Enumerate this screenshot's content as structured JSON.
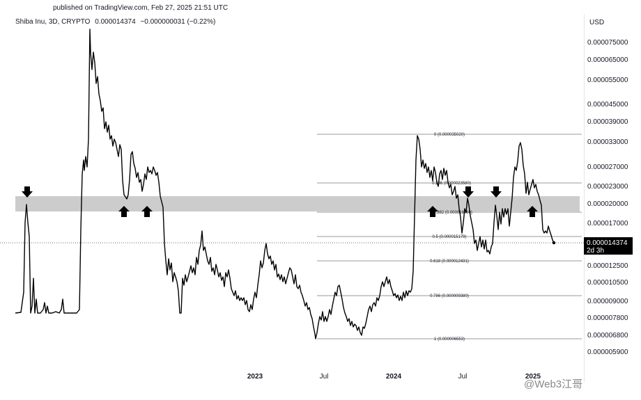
{
  "header": {
    "published": "published on TradingView.com, Feb 27, 2025 21:51 UTC",
    "symbol": "Shiba Inu, 3D, CRYPTO",
    "price": "0.000014374",
    "change": "−0.000000031 (−0.22%)"
  },
  "axis": {
    "currency": "USD"
  },
  "price_badge": {
    "value": "0.000014374",
    "countdown": "2d 3h"
  },
  "watermark": "@Web3江哥",
  "colors": {
    "line": "#000000",
    "zone": "#cccccc",
    "badge": "#000000",
    "grid": "#b2b2b2"
  },
  "chart_data": {
    "type": "line",
    "series": [
      {
        "name": "",
        "values": []
      }
    ],
    "y_ticks": [
      "0.000075000",
      "0.000065000",
      "0.000055000",
      "0.000045000",
      "0.000039000",
      "0.000033000",
      "0.000027000",
      "0.000023000",
      "0.000020000",
      "0.000017000",
      "0.000012500",
      "0.000010500",
      "0.000009000",
      "0.000007800",
      "0.000006800",
      "0.000005900"
    ],
    "x_ticks": [
      "2023",
      "Jul",
      "2024",
      "Jul",
      "2025"
    ],
    "support_zone": {
      "low": 1.87e-05,
      "high": 2.08e-05
    },
    "fibonacci": [
      {
        "level": "0",
        "price": "0.000035020",
        "label": "0 (0.000035020)"
      },
      {
        "level": "0.236",
        "price": "0.000023580",
        "label": "0.236 (0.000023580)"
      },
      {
        "level": "0.382",
        "price": "0.000018460",
        "label": "0.382 (0.000018460)"
      },
      {
        "level": "0.5",
        "price": "0.000015179",
        "label": "0.5 (0.000015179)"
      },
      {
        "level": "0.618",
        "price": "0.000012431",
        "label": "0.618 (0.000012431)"
      },
      {
        "level": "0.786",
        "price": "0.000009380",
        "label": "0.786 (0.000009380)"
      },
      {
        "level": "1",
        "price": "0.000006553",
        "label": "1 (0.000006553)"
      }
    ],
    "arrows": [
      {
        "dir": "down"
      },
      {
        "dir": "up"
      },
      {
        "dir": "up"
      },
      {
        "dir": "up"
      },
      {
        "dir": "down"
      },
      {
        "dir": "down"
      },
      {
        "dir": "up"
      }
    ]
  }
}
